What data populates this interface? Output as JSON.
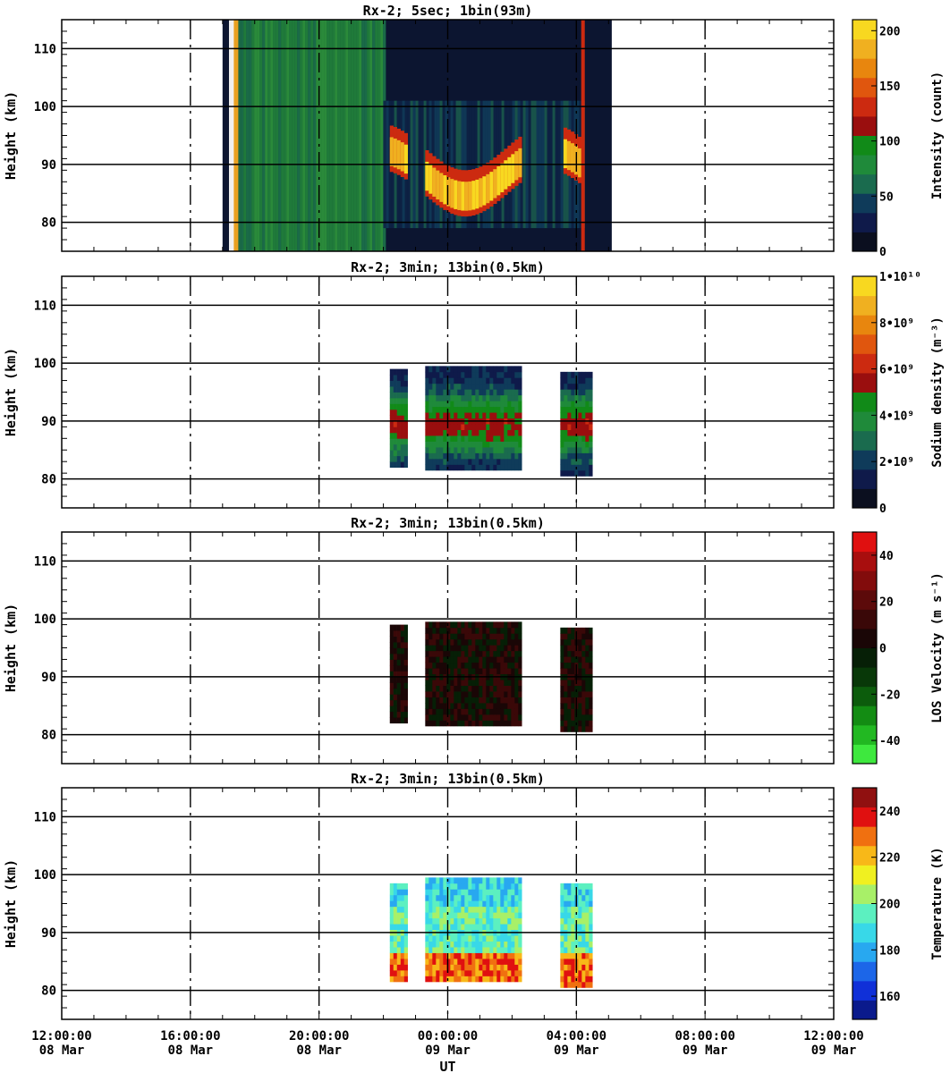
{
  "chart_data": [
    {
      "type": "heatmap",
      "title": "Rx-2;  5sec; 1bin(93m)",
      "ylabel": "Height (km)",
      "ylim": [
        75,
        115
      ],
      "yticks": [
        80,
        90,
        100,
        110
      ],
      "colorbar": {
        "label": "Intensity (count)",
        "range": [
          0,
          210
        ],
        "ticks": [
          "0",
          "50",
          "100",
          "150",
          "200"
        ],
        "tick_values": [
          0,
          50,
          100,
          150,
          200
        ],
        "colors": [
          "#0b0f1f",
          "#0f1a4a",
          "#0f3b5a",
          "#1a6b4e",
          "#1f8a3a",
          "#118a18",
          "#9a0e0e",
          "#cc2a10",
          "#e0560e",
          "#e8860e",
          "#f0b020",
          "#f8d820"
        ]
      },
      "data_extent": {
        "start_hour": 17.0,
        "end_hour": 29.1
      }
    },
    {
      "type": "heatmap",
      "title": "Rx-2; 3min; 13bin(0.5km)",
      "ylabel": "Height (km)",
      "ylim": [
        75,
        115
      ],
      "yticks": [
        80,
        90,
        100,
        110
      ],
      "colorbar": {
        "label": "Sodium density (m⁻³)",
        "range": [
          0,
          10000000000
        ],
        "ticks": [
          "0",
          "2•10⁹",
          "4•10⁹",
          "6•10⁹",
          "8•10⁹",
          "1•10¹⁰"
        ],
        "tick_values": [
          0,
          2000000000,
          4000000000,
          6000000000,
          8000000000,
          10000000000
        ],
        "colors": [
          "#0b0f1f",
          "#0f1a4a",
          "#0f3b5a",
          "#1a6b4e",
          "#1f8a3a",
          "#118a18",
          "#9a0e0e",
          "#cc2a10",
          "#e0560e",
          "#e8860e",
          "#f0b020",
          "#f8d820"
        ]
      },
      "segments": [
        [
          22.2,
          22.7,
          82,
          98.5
        ],
        [
          23.3,
          26.2,
          81.5,
          99.5
        ],
        [
          27.5,
          28.4,
          80.5,
          98.5
        ]
      ]
    },
    {
      "type": "heatmap",
      "title": "Rx-2; 3min; 13bin(0.5km)",
      "ylabel": "Height (km)",
      "ylim": [
        75,
        115
      ],
      "yticks": [
        80,
        90,
        100,
        110
      ],
      "colorbar": {
        "label": "LOS Velocity (m s⁻¹)",
        "range": [
          -50,
          50
        ],
        "ticks": [
          "-40",
          "-20",
          "0",
          "20",
          "40"
        ],
        "tick_values": [
          -40,
          -20,
          0,
          20,
          40
        ],
        "colors": [
          "#3ee83e",
          "#22b822",
          "#138c13",
          "#0c5c0c",
          "#083808",
          "#061f06",
          "#1a0606",
          "#3a0808",
          "#5c0a0a",
          "#820c0c",
          "#a80e0e",
          "#e01010"
        ]
      },
      "segments": [
        [
          22.2,
          22.7,
          82,
          98.5
        ],
        [
          23.3,
          26.2,
          81.5,
          99.5
        ],
        [
          27.5,
          28.4,
          80.5,
          98.5
        ]
      ]
    },
    {
      "type": "heatmap",
      "title": "Rx-2; 3min; 13bin(0.5km)",
      "ylabel": "Height (km)",
      "xlabel": "UT",
      "ylim": [
        75,
        115
      ],
      "yticks": [
        80,
        90,
        100,
        110
      ],
      "colorbar": {
        "label": "Temperature (K)",
        "range": [
          150,
          250
        ],
        "ticks": [
          "160",
          "180",
          "200",
          "220",
          "240"
        ],
        "tick_values": [
          160,
          180,
          200,
          220,
          240
        ],
        "colors": [
          "#0a1a8c",
          "#1030d8",
          "#1c66e8",
          "#28a8f0",
          "#38d8e8",
          "#5cf0c0",
          "#a8f068",
          "#f0f020",
          "#f8b818",
          "#f07010",
          "#e01010",
          "#901010"
        ]
      },
      "segments": [
        [
          22.2,
          22.7,
          81.5,
          98.5
        ],
        [
          23.3,
          26.2,
          81.5,
          99.5
        ],
        [
          27.5,
          28.4,
          80.5,
          98.5
        ]
      ]
    }
  ],
  "x_axis": {
    "range_hours": [
      12,
      36
    ],
    "ticks": [
      {
        "hour": 12,
        "time": "12:00:00",
        "date": "08 Mar"
      },
      {
        "hour": 16,
        "time": "16:00:00",
        "date": "08 Mar"
      },
      {
        "hour": 20,
        "time": "20:00:00",
        "date": "08 Mar"
      },
      {
        "hour": 24,
        "time": "00:00:00",
        "date": "09 Mar"
      },
      {
        "hour": 28,
        "time": "04:00:00",
        "date": "09 Mar"
      },
      {
        "hour": 32,
        "time": "08:00:00",
        "date": "09 Mar"
      },
      {
        "hour": 36,
        "time": "12:00:00",
        "date": "09 Mar"
      }
    ],
    "xlabel": "UT"
  }
}
